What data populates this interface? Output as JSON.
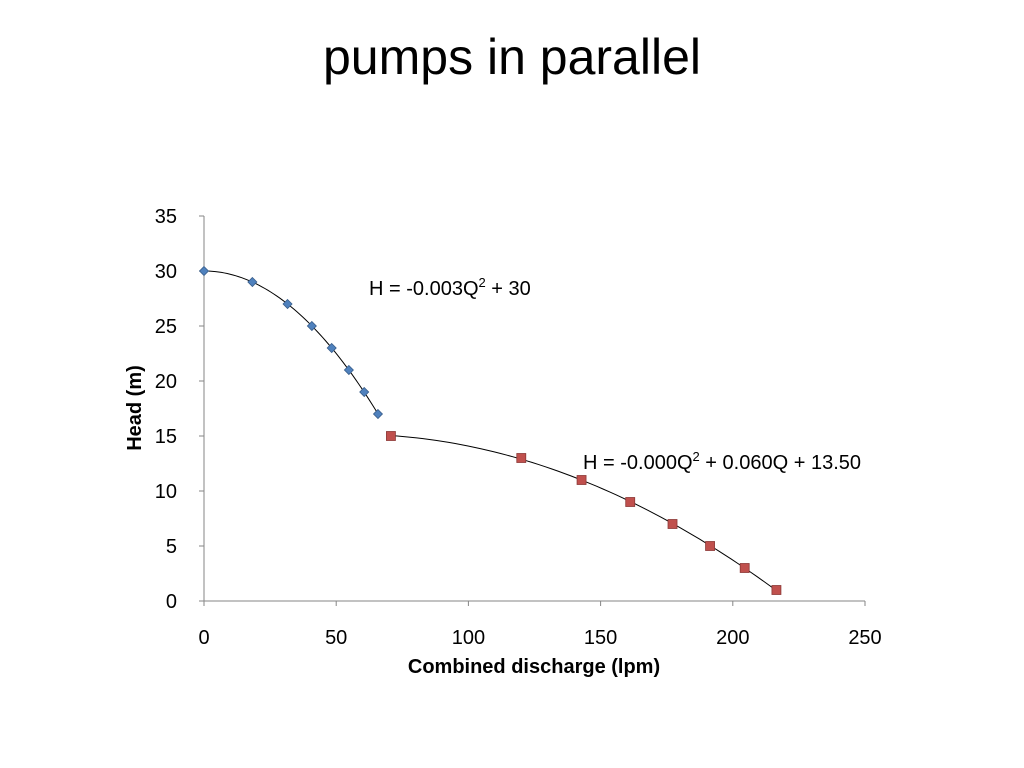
{
  "slide": {
    "title": "pumps in parallel"
  },
  "chart_data": {
    "type": "scatter",
    "xlabel": "Combined discharge (lpm)",
    "ylabel": "Head (m)",
    "xlim": [
      0,
      250
    ],
    "ylim": [
      0,
      35
    ],
    "xticks": [
      0,
      50,
      100,
      150,
      200,
      250
    ],
    "yticks": [
      0,
      5,
      10,
      15,
      20,
      25,
      30,
      35
    ],
    "grid": false,
    "legend": "none",
    "series": [
      {
        "marker": "diamond",
        "color": "#4f81bd",
        "points": [
          [
            0,
            30
          ],
          [
            18.3,
            29
          ],
          [
            31.6,
            27
          ],
          [
            40.8,
            25
          ],
          [
            48.3,
            23
          ],
          [
            54.8,
            21
          ],
          [
            60.6,
            19
          ],
          [
            65.8,
            17
          ]
        ],
        "trendline": {
          "type": "poly2",
          "a": -0.003,
          "b": 0,
          "c": 30,
          "x_range": [
            0,
            65.8
          ]
        }
      },
      {
        "marker": "square",
        "color": "#c0504d",
        "points": [
          [
            70.7,
            15
          ],
          [
            120,
            13
          ],
          [
            142.8,
            11
          ],
          [
            161.2,
            9
          ],
          [
            177.2,
            7
          ],
          [
            191.4,
            5
          ],
          [
            204.5,
            3
          ],
          [
            216.5,
            1
          ]
        ],
        "trendline": {
          "type": "quadratic-fit",
          "x_range": [
            70.7,
            216.5
          ]
        }
      }
    ],
    "annotations": [
      {
        "base": "H = -0.003Q",
        "sup": "2",
        "rest": " + 30"
      },
      {
        "base": "H = -0.000Q",
        "sup": "2",
        "rest": " + 0.060Q + 13.50"
      }
    ]
  }
}
